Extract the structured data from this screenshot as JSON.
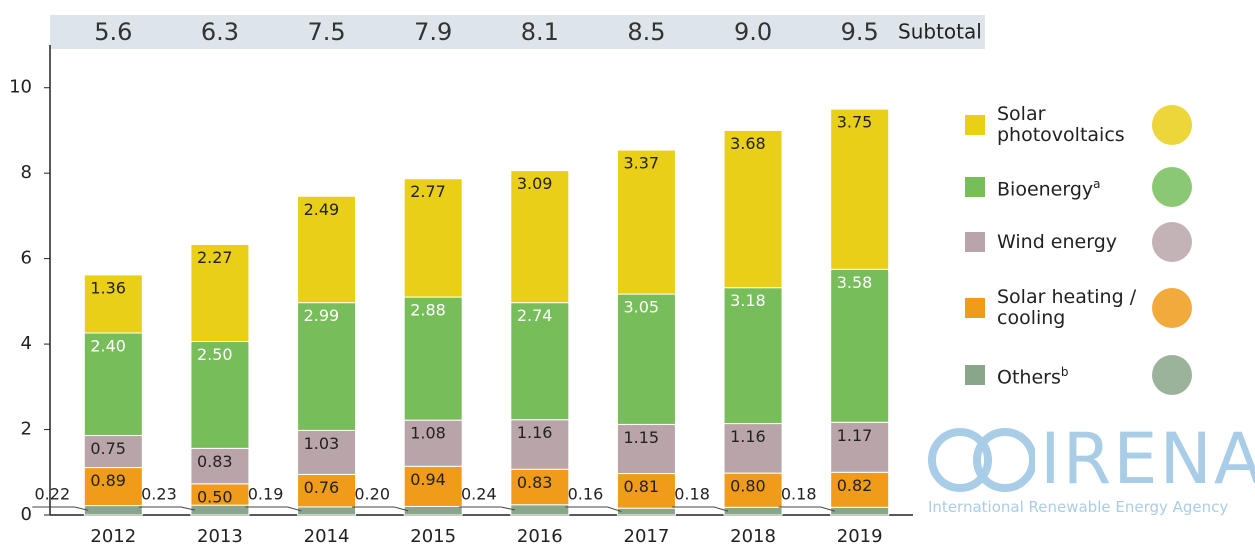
{
  "chart_data": {
    "type": "stacked-bar",
    "categories": [
      "2012",
      "2013",
      "2014",
      "2015",
      "2016",
      "2017",
      "2018",
      "2019"
    ],
    "series": [
      {
        "name": "Others",
        "footnote": "b",
        "color": "#8aa68a",
        "values": [
          0.22,
          0.23,
          0.19,
          0.2,
          0.24,
          0.16,
          0.18,
          0.18
        ],
        "value_labels": [
          "0.22",
          "0.23",
          "0.19",
          "0.20",
          "0.24",
          "0.16",
          "0.18",
          "0.18"
        ]
      },
      {
        "name": "Solar heating / cooling",
        "color": "#f09b1a",
        "values": [
          0.89,
          0.5,
          0.76,
          0.94,
          0.83,
          0.81,
          0.8,
          0.82
        ],
        "value_labels": [
          "0.89",
          "0.50",
          "0.76",
          "0.94",
          "0.83",
          "0.81",
          "0.80",
          "0.82"
        ]
      },
      {
        "name": "Wind energy",
        "color": "#b9a5a9",
        "values": [
          0.75,
          0.83,
          1.03,
          1.08,
          1.16,
          1.15,
          1.16,
          1.17
        ],
        "value_labels": [
          "0.75",
          "0.83",
          "1.03",
          "1.08",
          "1.16",
          "1.15",
          "1.16",
          "1.17"
        ]
      },
      {
        "name": "Bioenergy",
        "footnote": "a",
        "color": "#77be5b",
        "values": [
          2.4,
          2.5,
          2.99,
          2.88,
          2.74,
          3.05,
          3.18,
          3.58
        ],
        "value_labels": [
          "2.40",
          "2.50",
          "2.99",
          "2.88",
          "2.74",
          "3.05",
          "3.18",
          "3.58"
        ]
      },
      {
        "name": "Solar photovoltaics",
        "color": "#e9cf17",
        "values": [
          1.36,
          2.27,
          2.49,
          2.77,
          3.09,
          3.37,
          3.68,
          3.75
        ],
        "value_labels": [
          "1.36",
          "2.27",
          "2.49",
          "2.77",
          "3.09",
          "3.37",
          "3.68",
          "3.75"
        ]
      }
    ],
    "subtotal": {
      "label": "Subtotal",
      "values": [
        5.6,
        6.3,
        7.5,
        7.9,
        8.1,
        8.5,
        9.0,
        9.5
      ],
      "value_labels": [
        "5.6",
        "6.3",
        "7.5",
        "7.9",
        "8.1",
        "8.5",
        "9.0",
        "9.5"
      ]
    },
    "ylim": [
      0,
      11
    ],
    "yticks": [
      0,
      2,
      4,
      6,
      8,
      10
    ],
    "grid": false
  },
  "logo": {
    "name": "IRENA",
    "tagline": "International Renewable Energy Agency"
  }
}
